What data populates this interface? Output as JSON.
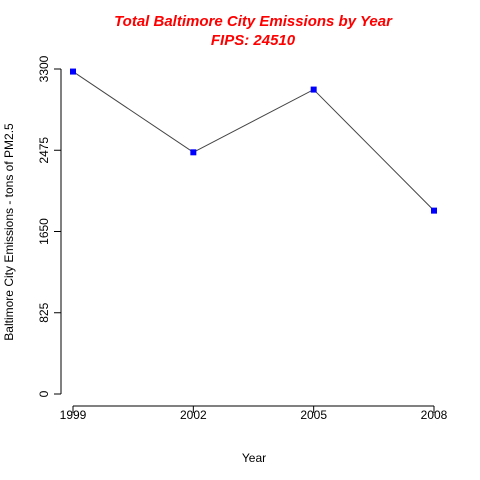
{
  "chart_data": {
    "type": "line",
    "title": "Total Baltimore City Emissions by Year",
    "subtitle": "FIPS: 24510",
    "xlabel": "Year",
    "ylabel": "Baltimore City Emissions - tons of PM2.5",
    "x": [
      1999,
      2002,
      2005,
      2008
    ],
    "series": [
      {
        "values": [
          3274,
          2454,
          3091,
          1862
        ]
      }
    ],
    "xticks": [
      "1999",
      "2002",
      "2005",
      "2008"
    ],
    "yticks": [
      "0",
      "825",
      "1650",
      "2475",
      "3300"
    ],
    "ylim": [
      0,
      3300
    ],
    "xlim": [
      1999,
      2008
    ],
    "grid": false,
    "colors": {
      "title": "#ff0000",
      "line": "#444444",
      "points": "#0000ff"
    }
  }
}
